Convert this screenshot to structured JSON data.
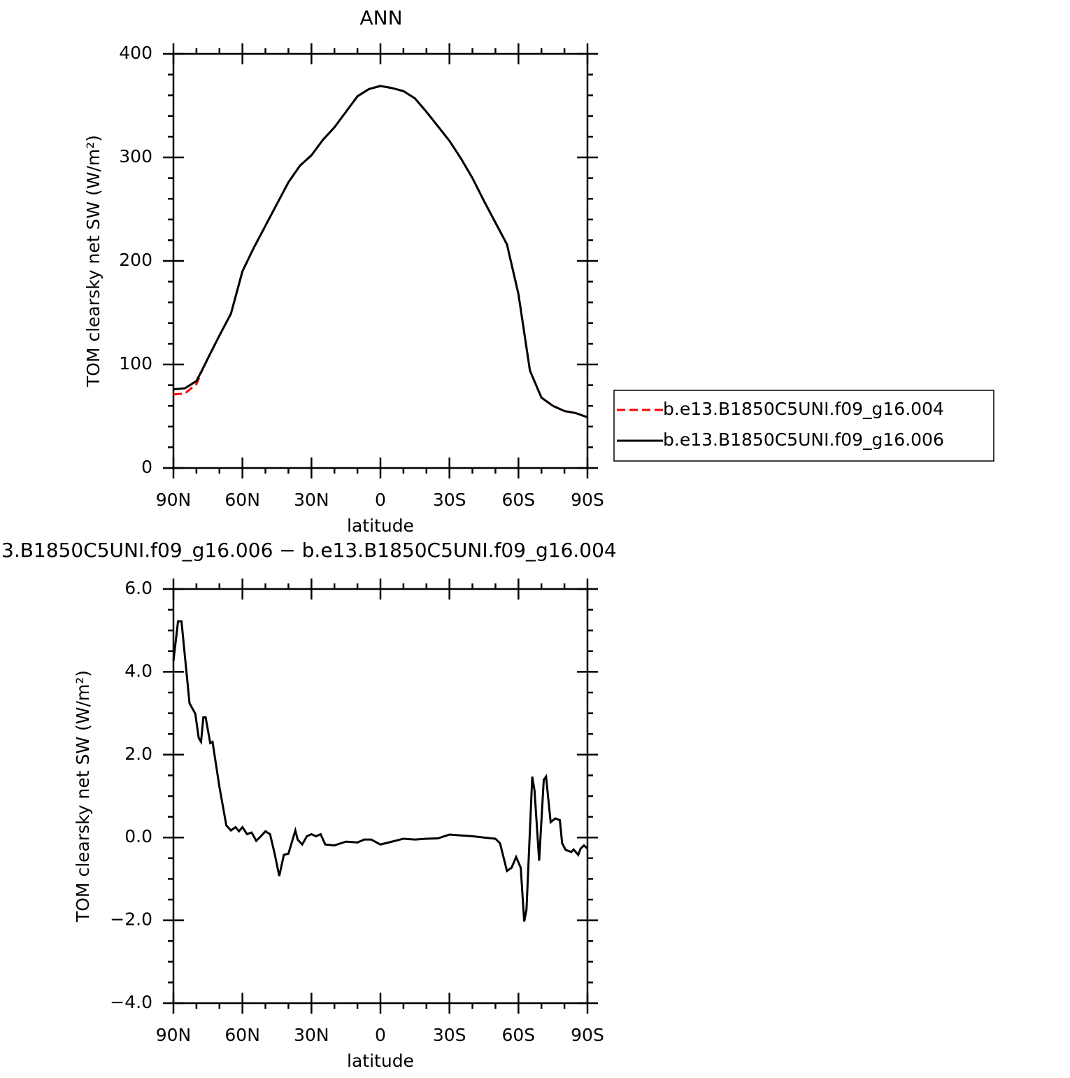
{
  "chart_data": [
    {
      "type": "line",
      "title": "ANN",
      "xlabel": "latitude",
      "ylabel": "TOM clearsky net SW (W/m²)",
      "xlim": [
        90,
        -90
      ],
      "xticks": [
        {
          "value": 90,
          "label": "90N"
        },
        {
          "value": 60,
          "label": "60N"
        },
        {
          "value": 30,
          "label": "30N"
        },
        0,
        {
          "value": -30,
          "label": "30S"
        },
        {
          "value": -60,
          "label": "60S"
        },
        {
          "value": -90,
          "label": "90S"
        }
      ],
      "ylim": [
        0,
        400
      ],
      "yticks": [
        0,
        100,
        200,
        300,
        400
      ],
      "legend": "right",
      "x": [
        90,
        85,
        80,
        77,
        75,
        70,
        65,
        60,
        55,
        50,
        45,
        40,
        35,
        30,
        25,
        20,
        15,
        10,
        5,
        0,
        -5,
        -10,
        -15,
        -20,
        -25,
        -30,
        -35,
        -40,
        -45,
        -50,
        -55,
        -60,
        -65,
        -70,
        -75,
        -80,
        -85,
        -90
      ],
      "series": [
        {
          "name": "b.e13.B1850C5UNI.f09_g16.004",
          "color": "#ff0000",
          "linestyle": "dashed",
          "values": [
            71,
            72,
            81,
            97,
            106,
            128,
            149,
            190,
            213,
            234,
            255,
            276,
            292,
            302,
            317,
            329,
            344,
            359,
            366,
            369,
            367,
            364,
            357,
            344,
            330,
            316,
            299,
            280,
            258,
            237,
            216,
            168,
            94,
            68,
            60,
            55,
            53,
            49
          ]
        },
        {
          "name": "b.e13.B1850C5UNI.f09_g16.006",
          "color": "#000000",
          "linestyle": "solid",
          "values": [
            76,
            77,
            84,
            97,
            106,
            128,
            149,
            190,
            213,
            234,
            255,
            276,
            292,
            302,
            317,
            329,
            344,
            359,
            366,
            369,
            367,
            364,
            357,
            344,
            330,
            316,
            299,
            280,
            258,
            237,
            216,
            168,
            94,
            68,
            60,
            55,
            53,
            49
          ]
        }
      ]
    },
    {
      "type": "line",
      "title": "3.B1850C5UNI.f09_g16.006 − b.e13.B1850C5UNI.f09_g16.004",
      "xlabel": "latitude",
      "ylabel": "TOM clearsky net SW (W/m²)",
      "xlim": [
        90,
        -90
      ],
      "xticks": [
        {
          "value": 90,
          "label": "90N"
        },
        {
          "value": 60,
          "label": "60N"
        },
        {
          "value": 30,
          "label": "30N"
        },
        0,
        {
          "value": -30,
          "label": "30S"
        },
        {
          "value": -60,
          "label": "60S"
        },
        {
          "value": -90,
          "label": "90S"
        }
      ],
      "ylim": [
        -4,
        6
      ],
      "yticks": [
        {
          "value": -4,
          "label": "−4.0"
        },
        {
          "value": -2,
          "label": "−2.0"
        },
        {
          "value": 0,
          "label": "0.0"
        },
        {
          "value": 2,
          "label": "2.0"
        },
        {
          "value": 4,
          "label": "4.0"
        },
        {
          "value": 6,
          "label": "6.0"
        }
      ],
      "x": [
        90,
        88,
        86.5,
        83,
        80.5,
        79,
        78,
        77,
        76,
        74,
        73,
        70,
        67,
        65,
        63,
        61.5,
        60,
        58,
        56,
        54,
        52,
        50,
        48,
        46,
        44,
        42,
        40,
        37,
        36,
        34,
        32,
        30,
        28,
        26,
        24,
        20,
        15,
        10,
        7,
        4,
        0,
        -5,
        -10,
        -15,
        -20,
        -25,
        -30,
        -35,
        -40,
        -45,
        -50,
        -52,
        -55,
        -57,
        -59,
        -61,
        -62.5,
        -63.5,
        -66,
        -67,
        -69,
        -71,
        -72,
        -74,
        -76,
        -78,
        -79,
        -80.5,
        -83,
        -84,
        -86,
        -87,
        -88.5,
        -90
      ],
      "series": [
        {
          "color": "#000000",
          "linestyle": "solid",
          "values": [
            4.26,
            5.22,
            5.22,
            3.24,
            2.99,
            2.4,
            2.31,
            2.9,
            2.9,
            2.28,
            2.31,
            1.22,
            0.29,
            0.17,
            0.25,
            0.15,
            0.25,
            0.08,
            0.12,
            -0.08,
            0.03,
            0.15,
            0.08,
            -0.39,
            -0.93,
            -0.42,
            -0.39,
            0.17,
            -0.05,
            -0.17,
            0.03,
            0.08,
            0.03,
            0.08,
            -0.17,
            -0.19,
            -0.1,
            -0.12,
            -0.05,
            -0.05,
            -0.17,
            -0.1,
            -0.03,
            -0.05,
            -0.03,
            -0.02,
            0.07,
            0.05,
            0.03,
            0,
            -0.03,
            -0.14,
            -0.81,
            -0.73,
            -0.47,
            -0.73,
            -2.03,
            -1.74,
            1.47,
            1.13,
            -0.56,
            1.39,
            1.47,
            0.37,
            0.46,
            0.42,
            -0.14,
            -0.3,
            -0.35,
            -0.29,
            -0.42,
            -0.27,
            -0.19,
            -0.27
          ]
        }
      ]
    }
  ]
}
